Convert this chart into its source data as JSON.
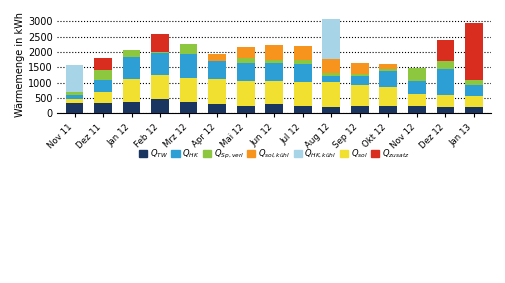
{
  "months": [
    "Nov 11",
    "Dez 11",
    "Jan 12",
    "Feb 12",
    "Mrz 12",
    "Apr 12",
    "Mai 12",
    "Jun 12",
    "Jul 12",
    "Aug 12",
    "Sep 12",
    "Okt 12",
    "Nov 12",
    "Dez 12",
    "Jan 13"
  ],
  "Q_TW": [
    350,
    330,
    370,
    460,
    360,
    300,
    240,
    310,
    230,
    220,
    230,
    250,
    240,
    210,
    200
  ],
  "Q_sol": [
    120,
    360,
    750,
    780,
    780,
    820,
    820,
    750,
    800,
    800,
    700,
    600,
    380,
    380,
    380
  ],
  "Q_HK": [
    120,
    390,
    710,
    710,
    800,
    580,
    580,
    580,
    580,
    200,
    280,
    540,
    430,
    850,
    340
  ],
  "Q_Sp_verl": [
    120,
    340,
    230,
    60,
    330,
    0,
    160,
    90,
    110,
    80,
    80,
    50,
    420,
    270,
    160
  ],
  "Q_sol_kuhl": [
    0,
    0,
    0,
    0,
    0,
    230,
    360,
    500,
    480,
    480,
    350,
    170,
    0,
    0,
    0
  ],
  "Q_HK_kuhl": [
    850,
    0,
    0,
    0,
    0,
    0,
    0,
    0,
    0,
    1290,
    0,
    0,
    0,
    0,
    0
  ],
  "Q_zusatz": [
    0,
    380,
    0,
    560,
    0,
    0,
    0,
    0,
    0,
    0,
    0,
    0,
    0,
    690,
    1850
  ],
  "colors": {
    "Q_TW": "#1a3560",
    "Q_sol": "#f2e030",
    "Q_HK": "#2e9fd4",
    "Q_Sp_verl": "#8dc63f",
    "Q_sol_kuhl": "#f7941d",
    "Q_HK_kuhl": "#a8d4e8",
    "Q_zusatz": "#d92d1f"
  },
  "ylim": [
    0,
    3200
  ],
  "yticks": [
    0,
    500,
    1000,
    1500,
    2000,
    2500,
    3000
  ],
  "ylabel": "Wärmemenge in kWh"
}
